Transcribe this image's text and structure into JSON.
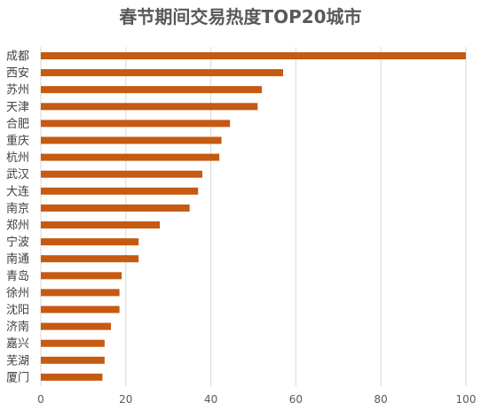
{
  "chart_data": {
    "type": "bar",
    "orientation": "horizontal",
    "title": "春节期间交易热度TOP20城市",
    "xlabel": "",
    "ylabel": "",
    "xlim": [
      0,
      100
    ],
    "x_ticks": [
      0,
      20,
      40,
      60,
      80,
      100
    ],
    "grid": "vertical",
    "legend": "none",
    "bar_color": "#c55a11",
    "categories": [
      "成都",
      "西安",
      "苏州",
      "天津",
      "合肥",
      "重庆",
      "杭州",
      "武汉",
      "大连",
      "南京",
      "郑州",
      "宁波",
      "南通",
      "青岛",
      "徐州",
      "沈阳",
      "济南",
      "嘉兴",
      "芜湖",
      "厦门"
    ],
    "values": [
      100,
      57,
      52,
      51,
      44.5,
      42.5,
      42,
      38,
      37,
      35,
      28,
      23,
      23,
      19,
      18.5,
      18.5,
      16.5,
      15,
      15,
      14.5
    ]
  }
}
